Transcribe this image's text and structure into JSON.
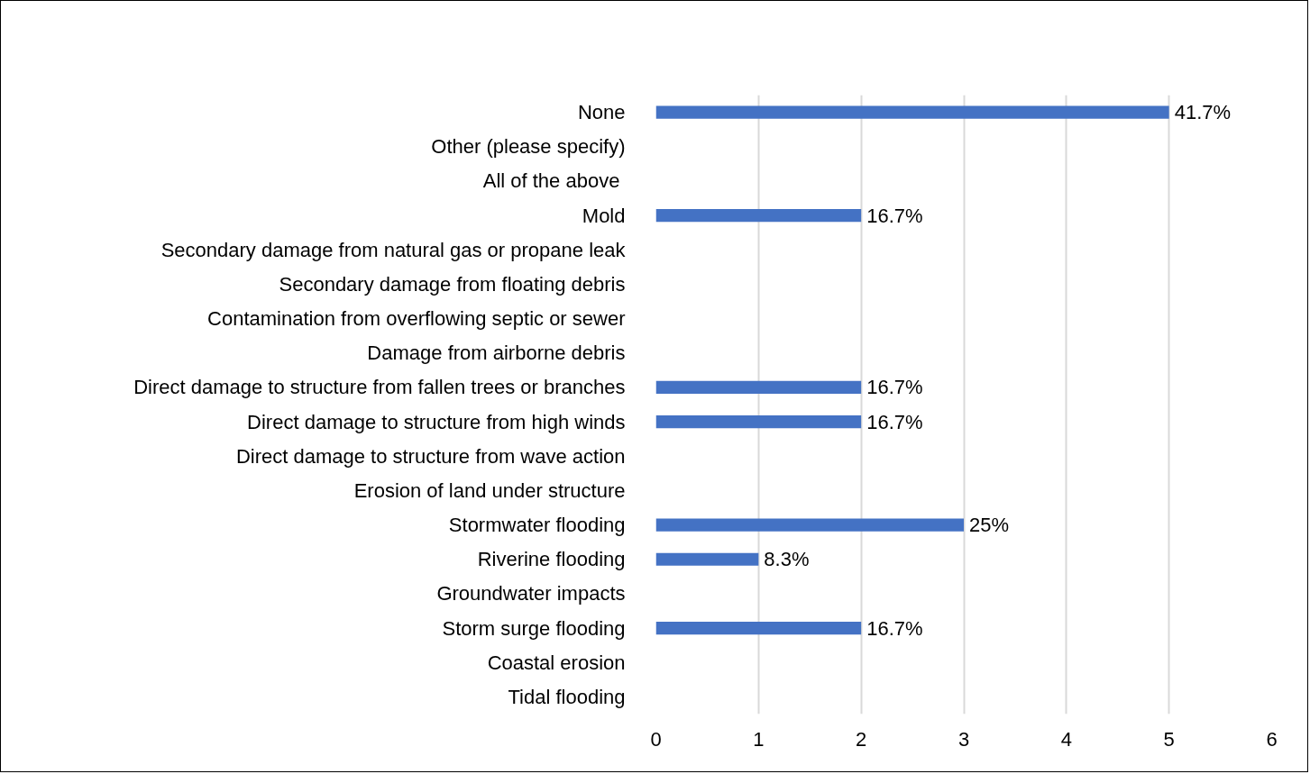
{
  "chart_data": {
    "type": "bar",
    "orientation": "horizontal",
    "categories": [
      "None",
      "Other (please specify)",
      "All of the above ",
      "Mold",
      "Secondary damage from natural gas or propane leak",
      "Secondary damage from floating debris",
      "Contamination from overflowing septic or sewer",
      "Damage from airborne debris",
      "Direct damage to structure from fallen trees or branches",
      "Direct damage to structure from high winds",
      "Direct damage to structure from wave action",
      "Erosion of land under structure",
      "Stormwater flooding",
      "Riverine flooding",
      "Groundwater impacts",
      "Storm surge flooding",
      "Coastal erosion",
      "Tidal flooding"
    ],
    "values": [
      5,
      0,
      0,
      2,
      0,
      0,
      0,
      0,
      2,
      2,
      0,
      0,
      3,
      1,
      0,
      2,
      0,
      0
    ],
    "annotations": [
      {
        "text": "41.7%",
        "x": 5,
        "y": "None"
      },
      {
        "text": "16.7%",
        "x": 2,
        "y": "Mold"
      },
      {
        "text": "16.7%",
        "x": 2,
        "y": "Direct damage to structure from fallen trees or branches"
      },
      {
        "text": "16.7%",
        "x": 2,
        "y": "Direct damage to structure from high winds"
      },
      {
        "text": "25%",
        "x": 3,
        "y": "Stormwater flooding"
      },
      {
        "text": "8.3%",
        "x": 1,
        "y": "Riverine flooding"
      },
      {
        "text": "16.7%",
        "x": 2,
        "y": "Storm surge flooding"
      }
    ],
    "color": "#4472c4",
    "xlim": [
      0,
      6
    ],
    "xticks": [
      0,
      1,
      2,
      3,
      4,
      5,
      6
    ],
    "grid": "x"
  }
}
